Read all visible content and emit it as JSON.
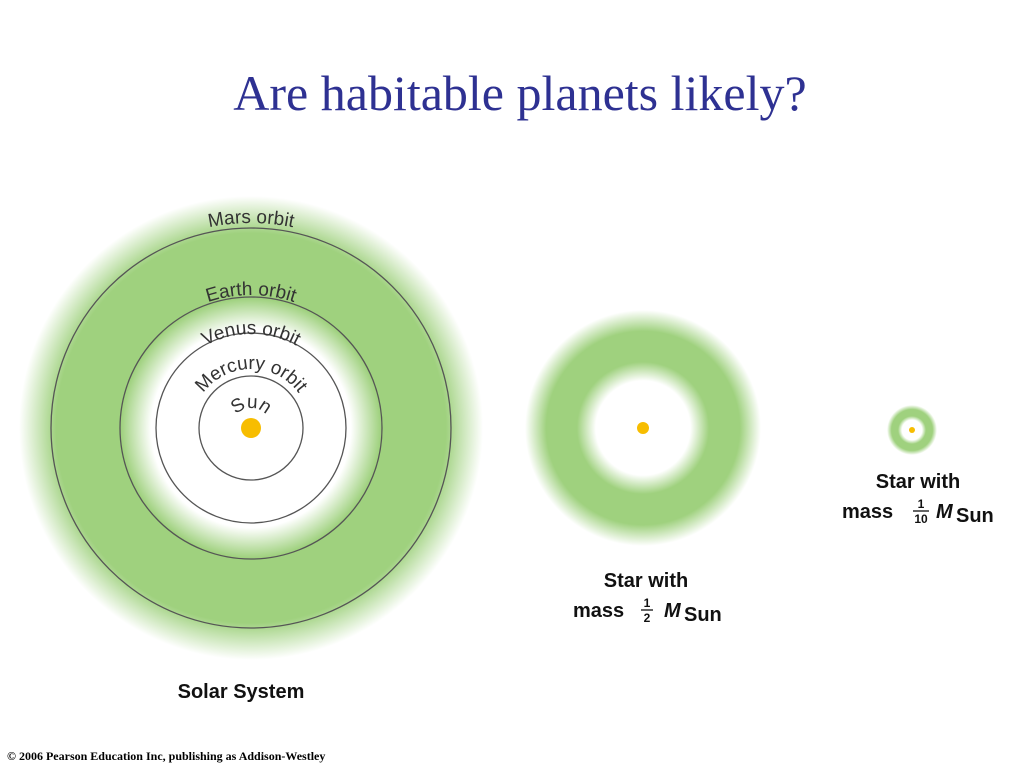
{
  "header": {
    "title": "Are habitable planets likely?"
  },
  "solar_system": {
    "orbits": {
      "mars": "Mars orbit",
      "earth": "Earth orbit",
      "venus": "Venus orbit",
      "mercury": "Mercury orbit"
    },
    "star": "Sun",
    "label": "Solar System"
  },
  "half_mass_star": {
    "line1": "Star with",
    "prefix": "mass",
    "numerator": "1",
    "denominator": "2",
    "symbol": "M",
    "subscript": "Sun"
  },
  "tenth_mass_star": {
    "line1": "Star with",
    "prefix": "mass",
    "numerator": "1",
    "denominator": "10",
    "symbol": "M",
    "subscript": "Sun"
  },
  "footer": {
    "copyright": "© 2006 Pearson Education Inc, publishing as Addison-Westley"
  }
}
